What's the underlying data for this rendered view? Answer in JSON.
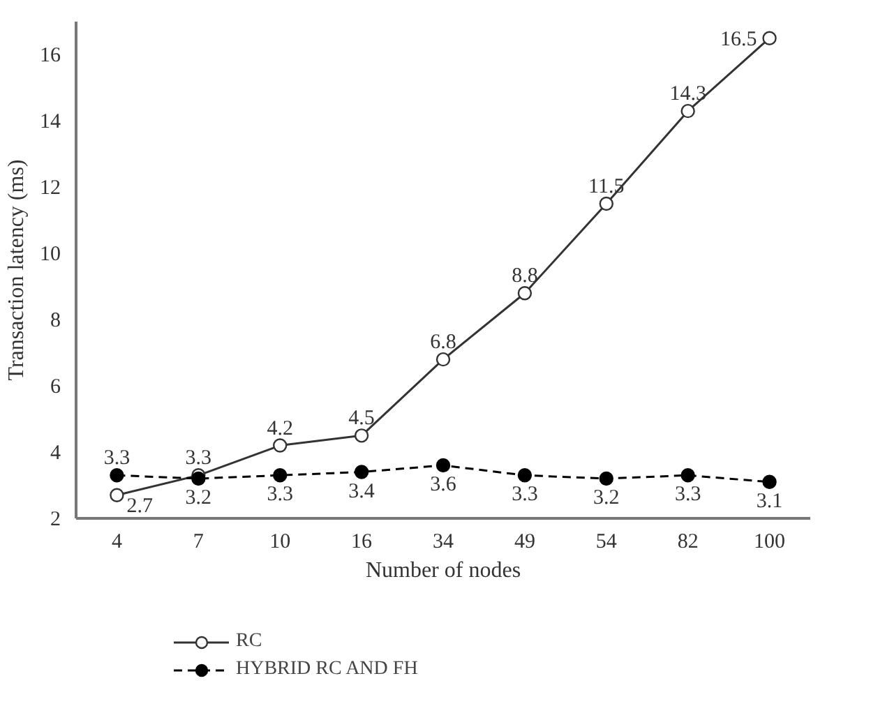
{
  "chart_data": {
    "type": "line",
    "xlabel": "Number of nodes",
    "ylabel": "Transaction latency (ms)",
    "categories": [
      "4",
      "7",
      "10",
      "16",
      "34",
      "49",
      "54",
      "82",
      "100"
    ],
    "series": [
      {
        "name": "RC",
        "color": "#333333",
        "line_style": "solid",
        "marker": "circle_open",
        "values": [
          2.7,
          3.3,
          4.2,
          4.5,
          6.8,
          8.8,
          11.5,
          14.3,
          16.5
        ]
      },
      {
        "name": "HYBRID RC AND FH",
        "color": "#000000",
        "line_style": "dashed",
        "marker": "circle",
        "values": [
          3.3,
          3.2,
          3.3,
          3.4,
          3.6,
          3.3,
          3.2,
          3.3,
          3.1
        ]
      }
    ],
    "ylim": [
      2,
      17
    ],
    "yticks": [
      2,
      4,
      6,
      8,
      10,
      12,
      14,
      16
    ],
    "data_labels": true,
    "legend": "bottom left"
  }
}
